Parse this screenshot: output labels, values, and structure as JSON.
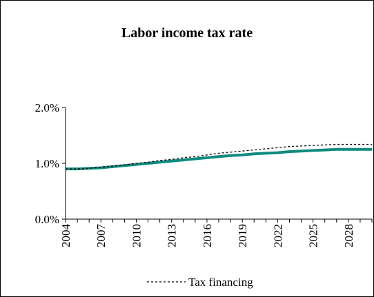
{
  "chart_data": {
    "type": "line",
    "title": "Labor income tax rate",
    "xlabel": "",
    "ylabel": "",
    "x": [
      2004,
      2005,
      2006,
      2007,
      2008,
      2009,
      2010,
      2011,
      2012,
      2013,
      2014,
      2015,
      2016,
      2017,
      2018,
      2019,
      2020,
      2021,
      2022,
      2023,
      2024,
      2025,
      2026,
      2027,
      2028,
      2029,
      2030
    ],
    "x_tick_labels": [
      "2004",
      "2007",
      "2010",
      "2013",
      "2016",
      "2019",
      "2022",
      "2025",
      "2028"
    ],
    "y_tick_labels": [
      "0.0%",
      "1.0%",
      "2.0%"
    ],
    "ylim": [
      0,
      2.0
    ],
    "xlim": [
      2004,
      2030
    ],
    "grid": false,
    "legend_position": "bottom",
    "series": [
      {
        "name": "",
        "color": "#0e8a7e",
        "style": "solid-thick",
        "values": [
          0.9,
          0.9,
          0.91,
          0.92,
          0.94,
          0.96,
          0.98,
          1.0,
          1.02,
          1.04,
          1.06,
          1.08,
          1.1,
          1.12,
          1.14,
          1.15,
          1.17,
          1.18,
          1.19,
          1.21,
          1.22,
          1.23,
          1.24,
          1.25,
          1.25,
          1.25,
          1.25
        ]
      },
      {
        "name": "Tax financing",
        "color": "#000000",
        "style": "dotted",
        "values": [
          0.9,
          0.9,
          0.91,
          0.93,
          0.95,
          0.97,
          1.0,
          1.02,
          1.05,
          1.07,
          1.1,
          1.12,
          1.15,
          1.18,
          1.2,
          1.22,
          1.24,
          1.26,
          1.28,
          1.3,
          1.31,
          1.32,
          1.33,
          1.34,
          1.34,
          1.34,
          1.34
        ]
      }
    ]
  }
}
